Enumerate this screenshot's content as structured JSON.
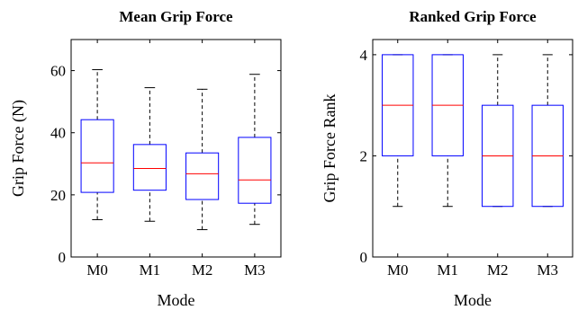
{
  "chart_data": [
    {
      "type": "box",
      "title": "Mean Grip Force",
      "xlabel": "Mode",
      "ylabel": "Grip Force (N)",
      "categories": [
        "M0",
        "M1",
        "M2",
        "M3"
      ],
      "ylim": [
        0,
        70
      ],
      "yticks": [
        0,
        20,
        40,
        60
      ],
      "grid": false,
      "box_color": "#0000ff",
      "median_color": "#ff0000",
      "boxes": [
        {
          "min": 12,
          "q1": 20.8,
          "median": 30.3,
          "q3": 44.2,
          "max": 60.3
        },
        {
          "min": 11.5,
          "q1": 21.5,
          "median": 28.5,
          "q3": 36.2,
          "max": 54.5
        },
        {
          "min": 8.8,
          "q1": 18.5,
          "median": 26.8,
          "q3": 33.5,
          "max": 54
        },
        {
          "min": 10.5,
          "q1": 17.3,
          "median": 24.8,
          "q3": 38.5,
          "max": 58.8
        }
      ]
    },
    {
      "type": "box",
      "title": "Ranked Grip Force",
      "xlabel": "Mode",
      "ylabel": "Grip Force Rank",
      "categories": [
        "M0",
        "M1",
        "M2",
        "M3"
      ],
      "ylim": [
        0,
        4.3
      ],
      "yticks": [
        0,
        2,
        4
      ],
      "grid": false,
      "box_color": "#0000ff",
      "median_color": "#ff0000",
      "boxes": [
        {
          "min": 1,
          "q1": 2,
          "median": 3,
          "q3": 4,
          "max": 4
        },
        {
          "min": 1,
          "q1": 2,
          "median": 3,
          "q3": 4,
          "max": 4
        },
        {
          "min": 1,
          "q1": 1,
          "median": 2,
          "q3": 3,
          "max": 4
        },
        {
          "min": 1,
          "q1": 1,
          "median": 2,
          "q3": 3,
          "max": 4
        }
      ]
    }
  ]
}
